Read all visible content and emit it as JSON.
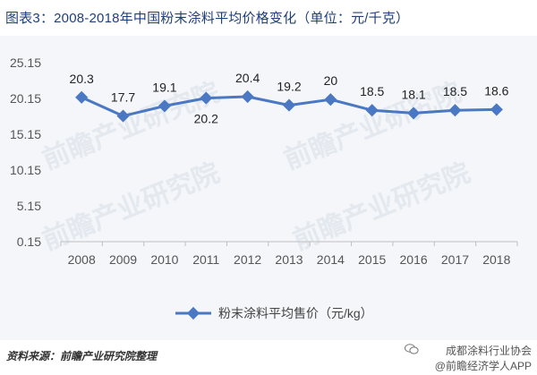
{
  "chart_data": {
    "type": "line",
    "title": "图表3：2008-2018年中国粉末涂料平均价格变化（单位：元/千克）",
    "xlabel": "",
    "ylabel": "",
    "categories": [
      "2008",
      "2009",
      "2010",
      "2011",
      "2012",
      "2013",
      "2014",
      "2015",
      "2016",
      "2017",
      "2018"
    ],
    "series": [
      {
        "name": "粉末涂料平均售价（元/kg）",
        "values": [
          20.3,
          17.7,
          19.1,
          20.2,
          20.4,
          19.2,
          20,
          18.5,
          18.1,
          18.5,
          18.6
        ],
        "labels": [
          "20.3",
          "17.7",
          "19.1",
          "20.2",
          "20.4",
          "19.2",
          "20",
          "18.5",
          "18.1",
          "18.5",
          "18.6"
        ],
        "color": "#4a78c2"
      }
    ],
    "y_ticks": [
      "0.15",
      "5.15",
      "10.15",
      "15.15",
      "20.15",
      "25.15"
    ],
    "ylim": [
      0.15,
      25.15
    ],
    "grid": false,
    "legend_position": "bottom"
  },
  "footer": {
    "source": "资料来源：前瞻产业研究院整理",
    "brand_line1": "成都涂料行业协会",
    "brand_line2": "@前瞻经济学人APP"
  },
  "watermark_text": "前瞻产业研究院"
}
